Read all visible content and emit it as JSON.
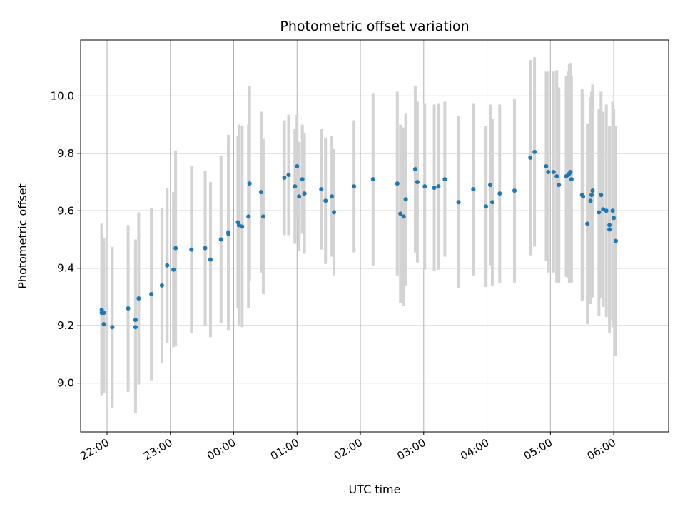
{
  "chart_data": {
    "type": "scatter",
    "title": "Photometric offset variation",
    "xlabel": "UTC time",
    "ylabel": "Photometric offset",
    "x_ticks": [
      "22:00",
      "23:00",
      "00:00",
      "01:00",
      "02:00",
      "03:00",
      "04:00",
      "05:00",
      "06:00"
    ],
    "y_ticks": [
      "9.0",
      "9.2",
      "9.4",
      "9.6",
      "9.8",
      "10.0"
    ],
    "xlim": [
      "21:35",
      "06:52"
    ],
    "ylim": [
      8.83,
      10.195
    ],
    "grid": true,
    "colors": {
      "point": "#1f77b4",
      "errorbar": "#d3d3d3",
      "grid": "#b0b0b0"
    },
    "series": [
      {
        "points": [
          {
            "t": "21:55",
            "y": 9.255,
            "e": 0.3
          },
          {
            "t": "21:55",
            "y": 9.245,
            "e": 0.27
          },
          {
            "t": "21:57",
            "y": 9.245,
            "e": 0.26
          },
          {
            "t": "21:57",
            "y": 9.205,
            "e": 0.24
          },
          {
            "t": "22:05",
            "y": 9.195,
            "e": 0.28
          },
          {
            "t": "22:20",
            "y": 9.26,
            "e": 0.29
          },
          {
            "t": "22:27",
            "y": 9.22,
            "e": 0.28
          },
          {
            "t": "22:27",
            "y": 9.195,
            "e": 0.3
          },
          {
            "t": "22:30",
            "y": 9.295,
            "e": 0.3
          },
          {
            "t": "22:42",
            "y": 9.31,
            "e": 0.3
          },
          {
            "t": "22:52",
            "y": 9.34,
            "e": 0.27
          },
          {
            "t": "22:57",
            "y": 9.41,
            "e": 0.27
          },
          {
            "t": "23:03",
            "y": 9.395,
            "e": 0.27
          },
          {
            "t": "23:05",
            "y": 9.47,
            "e": 0.34
          },
          {
            "t": "23:20",
            "y": 9.465,
            "e": 0.29
          },
          {
            "t": "23:33",
            "y": 9.47,
            "e": 0.27
          },
          {
            "t": "23:38",
            "y": 9.43,
            "e": 0.27
          },
          {
            "t": "23:48",
            "y": 9.5,
            "e": 0.29
          },
          {
            "t": "23:55",
            "y": 9.525,
            "e": 0.34
          },
          {
            "t": "23:55",
            "y": 9.52,
            "e": 0.31
          },
          {
            "t": "00:04",
            "y": 9.56,
            "e": 0.3
          },
          {
            "t": "00:05",
            "y": 9.55,
            "e": 0.35
          },
          {
            "t": "00:08",
            "y": 9.545,
            "e": 0.35
          },
          {
            "t": "00:14",
            "y": 9.58,
            "e": 0.32
          },
          {
            "t": "00:15",
            "y": 9.695,
            "e": 0.34
          },
          {
            "t": "00:26",
            "y": 9.665,
            "e": 0.28
          },
          {
            "t": "00:28",
            "y": 9.58,
            "e": 0.27
          },
          {
            "t": "00:48",
            "y": 9.715,
            "e": 0.2
          },
          {
            "t": "00:52",
            "y": 9.725,
            "e": 0.21
          },
          {
            "t": "00:58",
            "y": 9.685,
            "e": 0.2
          },
          {
            "t": "01:00",
            "y": 9.755,
            "e": 0.18
          },
          {
            "t": "01:02",
            "y": 9.65,
            "e": 0.19
          },
          {
            "t": "01:05",
            "y": 9.71,
            "e": 0.19
          },
          {
            "t": "01:07",
            "y": 9.66,
            "e": 0.21
          },
          {
            "t": "01:23",
            "y": 9.675,
            "e": 0.21
          },
          {
            "t": "01:27",
            "y": 9.635,
            "e": 0.22
          },
          {
            "t": "01:33",
            "y": 9.65,
            "e": 0.21
          },
          {
            "t": "01:35",
            "y": 9.595,
            "e": 0.22
          },
          {
            "t": "01:54",
            "y": 9.685,
            "e": 0.23
          },
          {
            "t": "02:12",
            "y": 9.71,
            "e": 0.3
          },
          {
            "t": "02:35",
            "y": 9.695,
            "e": 0.32
          },
          {
            "t": "02:38",
            "y": 9.59,
            "e": 0.31
          },
          {
            "t": "02:41",
            "y": 9.58,
            "e": 0.31
          },
          {
            "t": "02:43",
            "y": 9.64,
            "e": 0.3
          },
          {
            "t": "02:52",
            "y": 9.745,
            "e": 0.29
          },
          {
            "t": "02:54",
            "y": 9.7,
            "e": 0.28
          },
          {
            "t": "03:01",
            "y": 9.685,
            "e": 0.29
          },
          {
            "t": "03:10",
            "y": 9.68,
            "e": 0.29
          },
          {
            "t": "03:14",
            "y": 9.685,
            "e": 0.29
          },
          {
            "t": "03:20",
            "y": 9.71,
            "e": 0.27
          },
          {
            "t": "03:33",
            "y": 9.63,
            "e": 0.3
          },
          {
            "t": "03:47",
            "y": 9.675,
            "e": 0.3
          },
          {
            "t": "03:59",
            "y": 9.615,
            "e": 0.28
          },
          {
            "t": "04:03",
            "y": 9.69,
            "e": 0.28
          },
          {
            "t": "04:05",
            "y": 9.63,
            "e": 0.29
          },
          {
            "t": "04:12",
            "y": 9.66,
            "e": 0.31
          },
          {
            "t": "04:26",
            "y": 9.67,
            "e": 0.32
          },
          {
            "t": "04:41",
            "y": 9.785,
            "e": 0.34
          },
          {
            "t": "04:45",
            "y": 9.805,
            "e": 0.33
          },
          {
            "t": "04:56",
            "y": 9.755,
            "e": 0.33
          },
          {
            "t": "04:58",
            "y": 9.735,
            "e": 0.35
          },
          {
            "t": "05:03",
            "y": 9.735,
            "e": 0.35
          },
          {
            "t": "05:06",
            "y": 9.72,
            "e": 0.37
          },
          {
            "t": "05:08",
            "y": 9.69,
            "e": 0.34
          },
          {
            "t": "05:15",
            "y": 9.72,
            "e": 0.35
          },
          {
            "t": "05:17",
            "y": 9.725,
            "e": 0.36
          },
          {
            "t": "05:18",
            "y": 9.73,
            "e": 0.38
          },
          {
            "t": "05:19",
            "y": 9.735,
            "e": 0.38
          },
          {
            "t": "05:20",
            "y": 9.71,
            "e": 0.36
          },
          {
            "t": "05:30",
            "y": 9.655,
            "e": 0.37
          },
          {
            "t": "05:31",
            "y": 9.65,
            "e": 0.36
          },
          {
            "t": "05:35",
            "y": 9.555,
            "e": 0.35
          },
          {
            "t": "05:38",
            "y": 9.635,
            "e": 0.36
          },
          {
            "t": "05:39",
            "y": 9.655,
            "e": 0.36
          },
          {
            "t": "05:40",
            "y": 9.67,
            "e": 0.37
          },
          {
            "t": "05:46",
            "y": 9.595,
            "e": 0.36
          },
          {
            "t": "05:48",
            "y": 9.655,
            "e": 0.36
          },
          {
            "t": "05:50",
            "y": 9.605,
            "e": 0.34
          },
          {
            "t": "05:53",
            "y": 9.6,
            "e": 0.37
          },
          {
            "t": "05:56",
            "y": 9.535,
            "e": 0.36
          },
          {
            "t": "05:56",
            "y": 9.55,
            "e": 0.34
          },
          {
            "t": "05:59",
            "y": 9.6,
            "e": 0.38
          },
          {
            "t": "06:00",
            "y": 9.575,
            "e": 0.38
          },
          {
            "t": "06:02",
            "y": 9.495,
            "e": 0.4
          }
        ]
      }
    ]
  }
}
